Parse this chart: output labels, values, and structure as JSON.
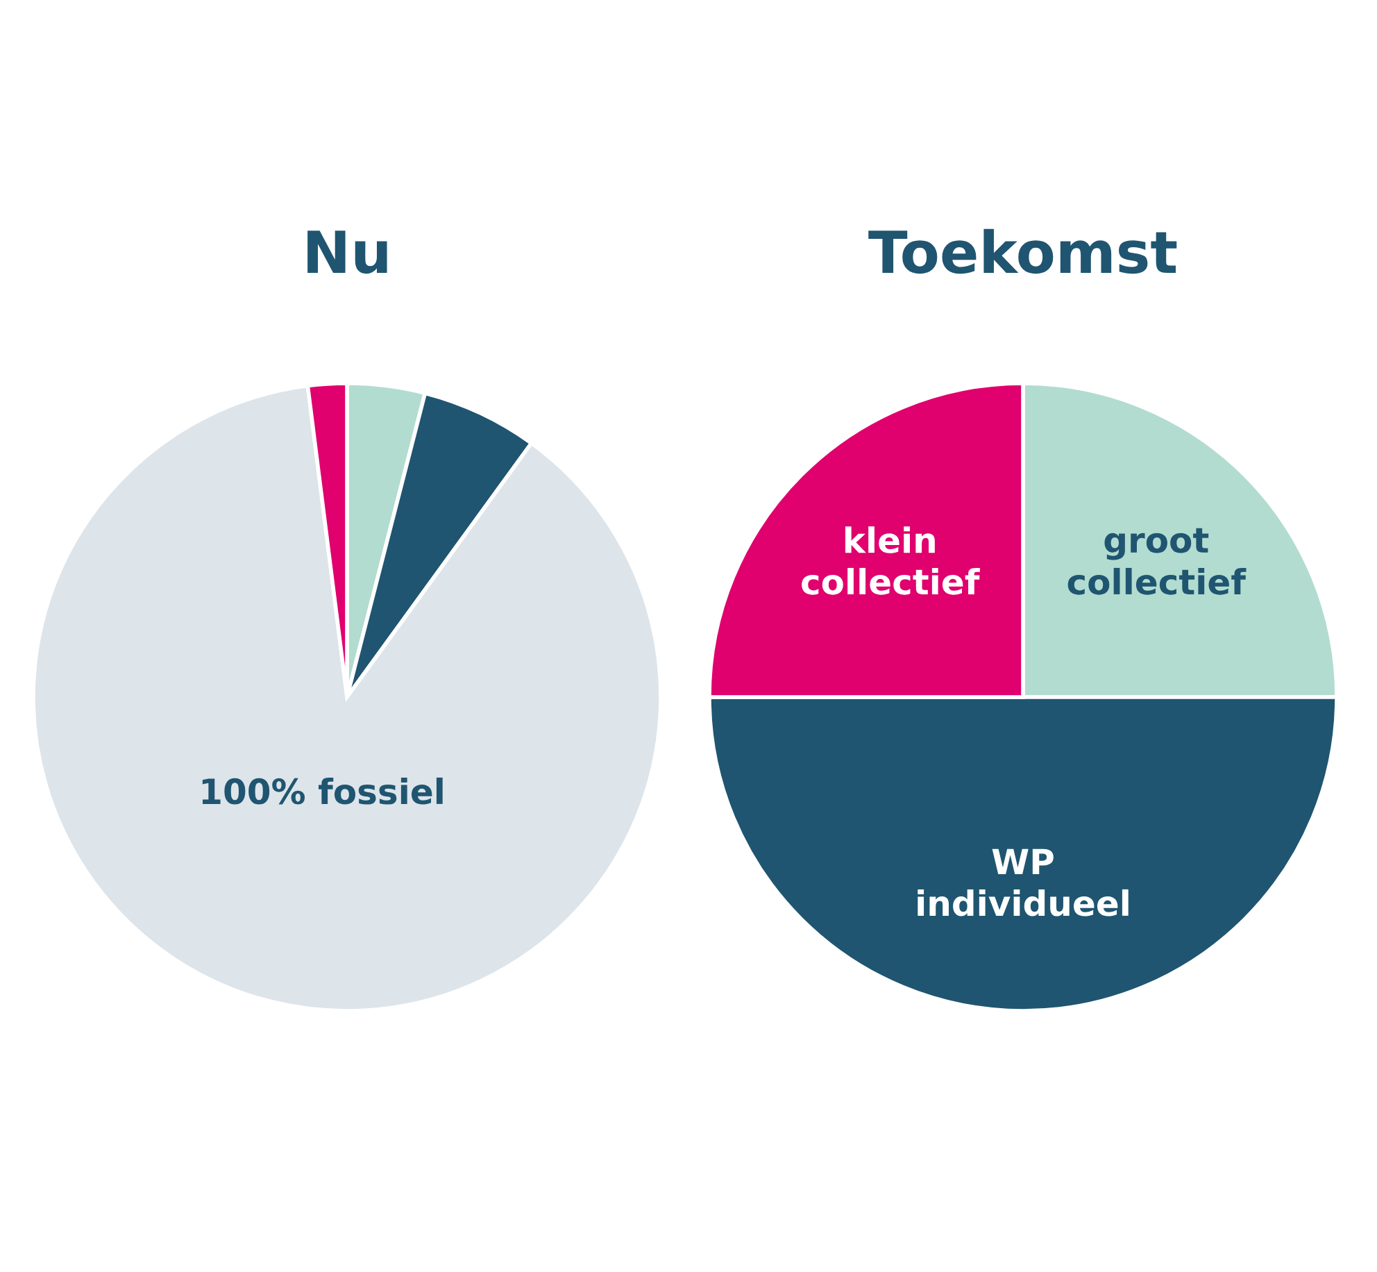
{
  "chart_data": [
    {
      "type": "pie",
      "title": "Nu",
      "categories": [
        null,
        null,
        "100% fossiel",
        null
      ],
      "values": [
        4,
        6,
        88,
        2
      ],
      "colors": [
        "#b2dcd0",
        "#1f5570",
        "#dde4ea",
        "#e0006e"
      ]
    },
    {
      "type": "pie",
      "title": "Toekomst",
      "categories": [
        "groot\ncollectief",
        "WP\nindividueel",
        "klein\ncollectief"
      ],
      "values": [
        25,
        50,
        25
      ],
      "colors": [
        "#b2dcd0",
        "#1f5570",
        "#e0006e"
      ]
    }
  ]
}
